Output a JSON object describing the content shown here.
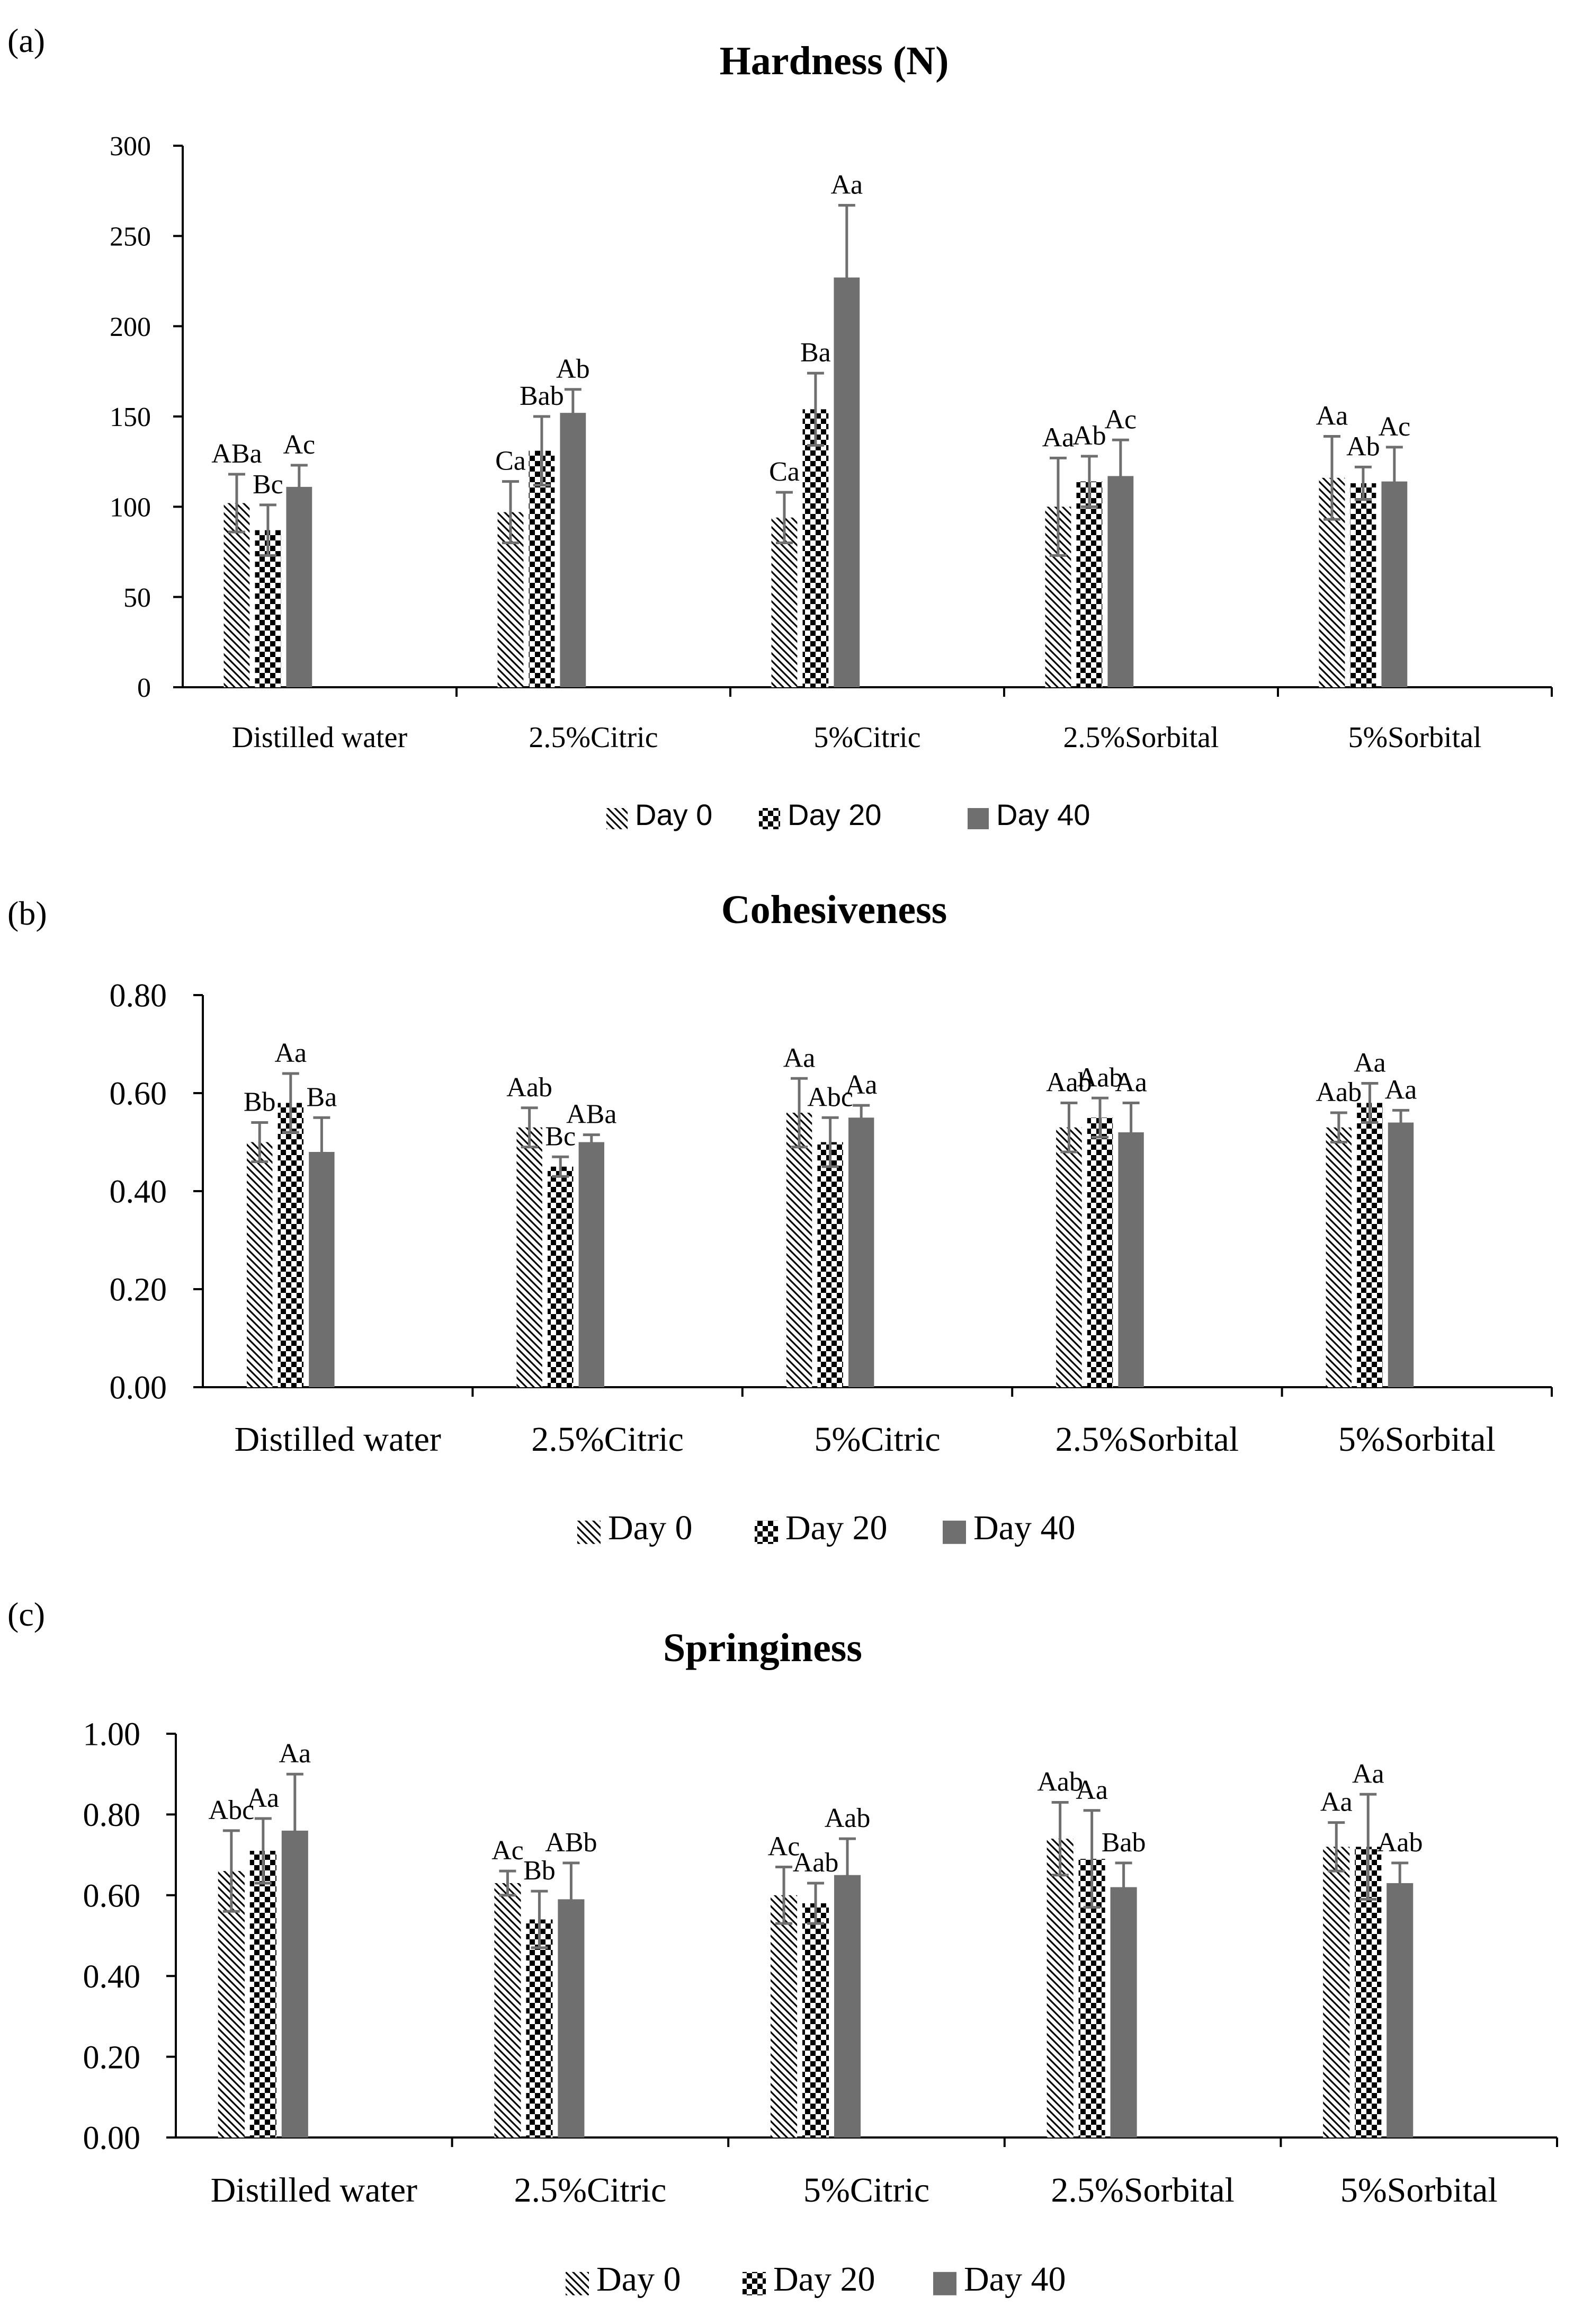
{
  "figure": {
    "colors": {
      "day40": "#6f6f6f",
      "axis": "#000000",
      "error": "#6f6f6f",
      "checker": "#000000",
      "hatch": "#000000"
    }
  },
  "chart_data": [
    {
      "type": "bar",
      "panel": "(a)",
      "title": "Hardness (N)",
      "categories": [
        "Distilled water",
        "2.5%Citric",
        "5%Citric",
        "2.5%Sorbital",
        "5%Sorbital"
      ],
      "ylim": [
        0,
        300
      ],
      "yticks": [
        "0",
        "50",
        "100",
        "150",
        "200",
        "250",
        "300"
      ],
      "legend_position": "bottom-center",
      "legend": [
        "Day 0",
        "Day 20",
        "Day 40"
      ],
      "series": [
        {
          "name": "Day 0",
          "pattern": "hatch",
          "values": [
            102,
            97,
            94,
            100,
            116
          ],
          "errors": [
            16,
            17,
            14,
            27,
            23
          ],
          "labels": [
            "ABa",
            "Ca",
            "Ca",
            "Aa",
            "Aa"
          ]
        },
        {
          "name": "Day 20",
          "pattern": "checker",
          "values": [
            87,
            131,
            154,
            114,
            113
          ],
          "errors": [
            14,
            19,
            20,
            14,
            9
          ],
          "labels": [
            "Bc",
            "Bab",
            "Ba",
            "Ab",
            "Ab"
          ]
        },
        {
          "name": "Day 40",
          "pattern": "solid",
          "values": [
            111,
            152,
            227,
            117,
            114
          ],
          "errors": [
            12,
            13,
            40,
            20,
            19
          ],
          "labels": [
            "Ac",
            "Ab",
            "Aa",
            "Ac",
            "Ac"
          ]
        }
      ]
    },
    {
      "type": "bar",
      "panel": "(b)",
      "title": "Cohesiveness",
      "categories": [
        "Distilled water",
        "2.5%Citric",
        "5%Citric",
        "2.5%Sorbital",
        "5%Sorbital"
      ],
      "ylim": [
        0,
        0.8
      ],
      "yticks": [
        "0.00",
        "0.20",
        "0.40",
        "0.60",
        "0.80"
      ],
      "legend_position": "bottom-center",
      "legend": [
        "Day 0",
        "Day 20",
        "Day 40"
      ],
      "series": [
        {
          "name": "Day 0",
          "pattern": "hatch",
          "values": [
            0.5,
            0.53,
            0.56,
            0.53,
            0.53
          ],
          "errors": [
            0.04,
            0.04,
            0.07,
            0.05,
            0.03
          ],
          "labels": [
            "Bb",
            "Aab",
            "Aa",
            "Aab",
            "Aab"
          ]
        },
        {
          "name": "Day 20",
          "pattern": "checker",
          "values": [
            0.58,
            0.45,
            0.5,
            0.55,
            0.58
          ],
          "errors": [
            0.06,
            0.02,
            0.05,
            0.04,
            0.04
          ],
          "labels": [
            "Aa",
            "Bc",
            "Abc",
            "Aab",
            "Aa"
          ]
        },
        {
          "name": "Day 40",
          "pattern": "solid",
          "values": [
            0.48,
            0.5,
            0.55,
            0.52,
            0.54
          ],
          "errors": [
            0.07,
            0.015,
            0.025,
            0.06,
            0.025
          ],
          "labels": [
            "Ba",
            "ABa",
            "Aa",
            "Aa",
            "Aa"
          ]
        }
      ]
    },
    {
      "type": "bar",
      "panel": "(c)",
      "title": "Springiness",
      "categories": [
        "Distilled water",
        "2.5%Citric",
        "5%Citric",
        "2.5%Sorbital",
        "5%Sorbital"
      ],
      "ylim": [
        0,
        1.0
      ],
      "yticks": [
        "0.00",
        "0.20",
        "0.40",
        "0.60",
        "0.80",
        "1.00"
      ],
      "legend_position": "bottom-center",
      "legend": [
        "Day 0",
        "Day 20",
        "Day 40"
      ],
      "series": [
        {
          "name": "Day 0",
          "pattern": "hatch",
          "values": [
            0.66,
            0.63,
            0.6,
            0.74,
            0.72
          ],
          "errors": [
            0.1,
            0.03,
            0.07,
            0.09,
            0.06
          ],
          "labels": [
            "Abc",
            "Ac",
            "Ac",
            "Aab",
            "Aa"
          ]
        },
        {
          "name": "Day 20",
          "pattern": "checker",
          "values": [
            0.71,
            0.54,
            0.58,
            0.69,
            0.72
          ],
          "errors": [
            0.08,
            0.07,
            0.05,
            0.12,
            0.13
          ],
          "labels": [
            "Aa",
            "Bb",
            "Aab",
            "Aa",
            "Aa"
          ]
        },
        {
          "name": "Day 40",
          "pattern": "solid",
          "values": [
            0.76,
            0.59,
            0.65,
            0.62,
            0.63
          ],
          "errors": [
            0.14,
            0.09,
            0.09,
            0.06,
            0.05
          ],
          "labels": [
            "Aa",
            "ABb",
            "Aab",
            "Bab",
            "Aab"
          ]
        }
      ]
    }
  ]
}
